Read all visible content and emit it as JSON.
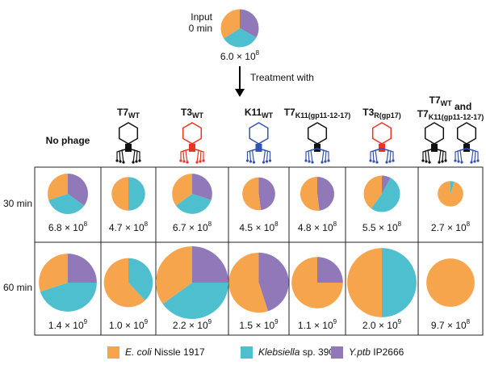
{
  "input": {
    "label": [
      "Input",
      "0 min"
    ],
    "values": [
      34,
      33,
      33
    ],
    "count": {
      "mantissa": "6.0",
      "base": "× 10",
      "exponent": "8"
    }
  },
  "treatment_label": "Treatment with",
  "species": [
    {
      "italic": "E. coli",
      "rest": " Nissle 1917",
      "color": "#f6a54c"
    },
    {
      "italic": "Klebsiella",
      "rest": " sp. 390",
      "color": "#4dbfce"
    },
    {
      "italic": "Y.ptb",
      "rest": " IP2666",
      "color": "#9178b8"
    }
  ],
  "columns": [
    {
      "lines": [
        [
          {
            "text": "No phage"
          }
        ]
      ]
    },
    {
      "lines": [
        [
          {
            "text": "T7",
            "sub": "WT"
          }
        ]
      ]
    },
    {
      "lines": [
        [
          {
            "text": "T3",
            "sub": "WT"
          }
        ]
      ]
    },
    {
      "lines": [
        [
          {
            "text": "K11",
            "sub": "WT"
          }
        ]
      ]
    },
    {
      "lines": [
        [
          {
            "text": "T7",
            "sub": "K11(gp11-12-17)"
          }
        ]
      ]
    },
    {
      "lines": [
        [
          {
            "text": "T3",
            "sub": "R(gp17)"
          }
        ]
      ]
    },
    {
      "lines": [
        [
          {
            "text": "T7",
            "sub": "WT"
          },
          {
            "text": " and"
          }
        ],
        [
          {
            "text": "T7",
            "sub": "K11(gp11-12-17)"
          }
        ]
      ]
    }
  ],
  "rows": [
    {
      "label": "30 min",
      "cells": [
        {
          "values": [
            30,
            35,
            35
          ],
          "count": {
            "mantissa": "6.8",
            "base": "× 10",
            "exponent": "8"
          }
        },
        {
          "values": [
            50,
            50,
            0
          ],
          "count": {
            "mantissa": "4.7",
            "base": "× 10",
            "exponent": "8"
          }
        },
        {
          "values": [
            35,
            35,
            30
          ],
          "count": {
            "mantissa": "6.7",
            "base": "× 10",
            "exponent": "8"
          }
        },
        {
          "values": [
            52,
            0,
            48
          ],
          "count": {
            "mantissa": "4.5",
            "base": "× 10",
            "exponent": "8"
          }
        },
        {
          "values": [
            52,
            0,
            48
          ],
          "count": {
            "mantissa": "4.8",
            "base": "× 10",
            "exponent": "8"
          }
        },
        {
          "values": [
            40,
            52,
            8
          ],
          "count": {
            "mantissa": "5.5",
            "base": "× 10",
            "exponent": "8"
          }
        },
        {
          "values": [
            95,
            5,
            0
          ],
          "count": {
            "mantissa": "2.7",
            "base": "× 10",
            "exponent": "8"
          }
        }
      ]
    },
    {
      "label": "60 min",
      "cells": [
        {
          "values": [
            30,
            45,
            25
          ],
          "count": {
            "mantissa": "1.4",
            "base": "× 10",
            "exponent": "9"
          }
        },
        {
          "values": [
            62,
            38,
            0
          ],
          "count": {
            "mantissa": "1.0",
            "base": "× 10",
            "exponent": "9"
          }
        },
        {
          "values": [
            35,
            40,
            25
          ],
          "count": {
            "mantissa": "2.2",
            "base": "× 10",
            "exponent": "9"
          }
        },
        {
          "values": [
            55,
            0,
            45
          ],
          "count": {
            "mantissa": "1.5",
            "base": "× 10",
            "exponent": "9"
          }
        },
        {
          "values": [
            75,
            0,
            25
          ],
          "count": {
            "mantissa": "1.1",
            "base": "× 10",
            "exponent": "9"
          }
        },
        {
          "values": [
            50,
            50,
            0
          ],
          "count": {
            "mantissa": "2.0",
            "base": "× 10",
            "exponent": "9"
          }
        },
        {
          "values": [
            100,
            0,
            0
          ],
          "count": {
            "mantissa": "9.7",
            "base": "× 10",
            "exponent": "8"
          }
        }
      ]
    }
  ]
}
